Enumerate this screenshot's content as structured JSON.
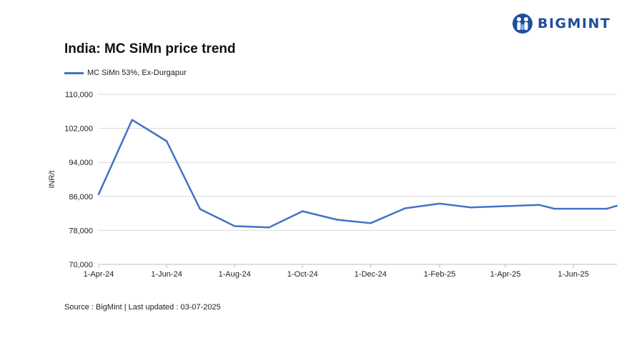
{
  "brand": {
    "name": "BIGMINT",
    "color": "#1f4f9e"
  },
  "chart_data": {
    "type": "line",
    "title": "India: MC SiMn price trend",
    "ylabel": "INR/t",
    "xlabel": "",
    "ylim": [
      70000,
      110000
    ],
    "yticks": [
      70000,
      78000,
      86000,
      94000,
      102000,
      110000
    ],
    "ytick_labels": [
      "70,000",
      "78,000",
      "86,000",
      "94,000",
      "102,000",
      "110,000"
    ],
    "xtick_labels": [
      "1-Apr-24",
      "1-Jun-24",
      "1-Aug-24",
      "1-Oct-24",
      "1-Dec-24",
      "1-Feb-25",
      "1-Apr-25",
      "1-Jun-25"
    ],
    "grid": true,
    "legend_position": "top-left",
    "series": [
      {
        "name": "MC SiMn 53%, Ex-Durgapur",
        "color": "#4472c4",
        "points": [
          {
            "x": "2024-04-01",
            "y": 86500
          },
          {
            "x": "2024-05-01",
            "y": 104000
          },
          {
            "x": "2024-06-01",
            "y": 99000
          },
          {
            "x": "2024-07-01",
            "y": 83000
          },
          {
            "x": "2024-08-01",
            "y": 79000
          },
          {
            "x": "2024-09-01",
            "y": 78700
          },
          {
            "x": "2024-10-01",
            "y": 82500
          },
          {
            "x": "2024-11-01",
            "y": 80500
          },
          {
            "x": "2024-12-01",
            "y": 79700
          },
          {
            "x": "2025-01-01",
            "y": 83200
          },
          {
            "x": "2025-02-01",
            "y": 84300
          },
          {
            "x": "2025-03-01",
            "y": 83400
          },
          {
            "x": "2025-04-01",
            "y": 83700
          },
          {
            "x": "2025-05-01",
            "y": 84000
          },
          {
            "x": "2025-05-15",
            "y": 83100
          },
          {
            "x": "2025-06-01",
            "y": 83100
          },
          {
            "x": "2025-07-01",
            "y": 83100
          },
          {
            "x": "2025-07-10",
            "y": 83800
          }
        ]
      }
    ]
  },
  "source": "Source : BigMint | Last updated : 03-07-2025"
}
